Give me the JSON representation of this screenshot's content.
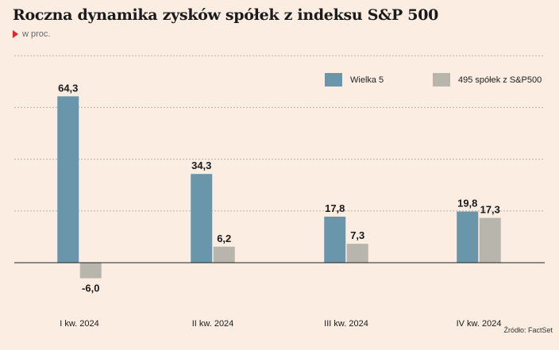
{
  "title": "Roczna dynamika zysków spółek z indeksu S&P 500",
  "subtitle": "w proc.",
  "source": "Źródło: FactSet",
  "colors": {
    "series_a": "#6996aa",
    "series_b": "#b8b5ac",
    "background": "#fbede2"
  },
  "chart_data": {
    "type": "bar",
    "categories": [
      "I kw. 2024",
      "II kw. 2024",
      "III kw. 2024",
      "IV kw. 2024"
    ],
    "series": [
      {
        "name": "Wielka 5",
        "values": [
          64.3,
          34.3,
          17.8,
          19.8
        ],
        "labels": [
          "64,3",
          "34,3",
          "17,8",
          "19,8"
        ]
      },
      {
        "name": "495 spółek z S&P500",
        "values": [
          -6.0,
          6.2,
          7.3,
          17.3
        ],
        "labels": [
          "-6,0",
          "6,2",
          "7,3",
          "17,3"
        ]
      }
    ],
    "ylim": [
      -10,
      80
    ],
    "gridlines": [
      20,
      40,
      60,
      80
    ],
    "grid": true,
    "legend": "top-right"
  }
}
